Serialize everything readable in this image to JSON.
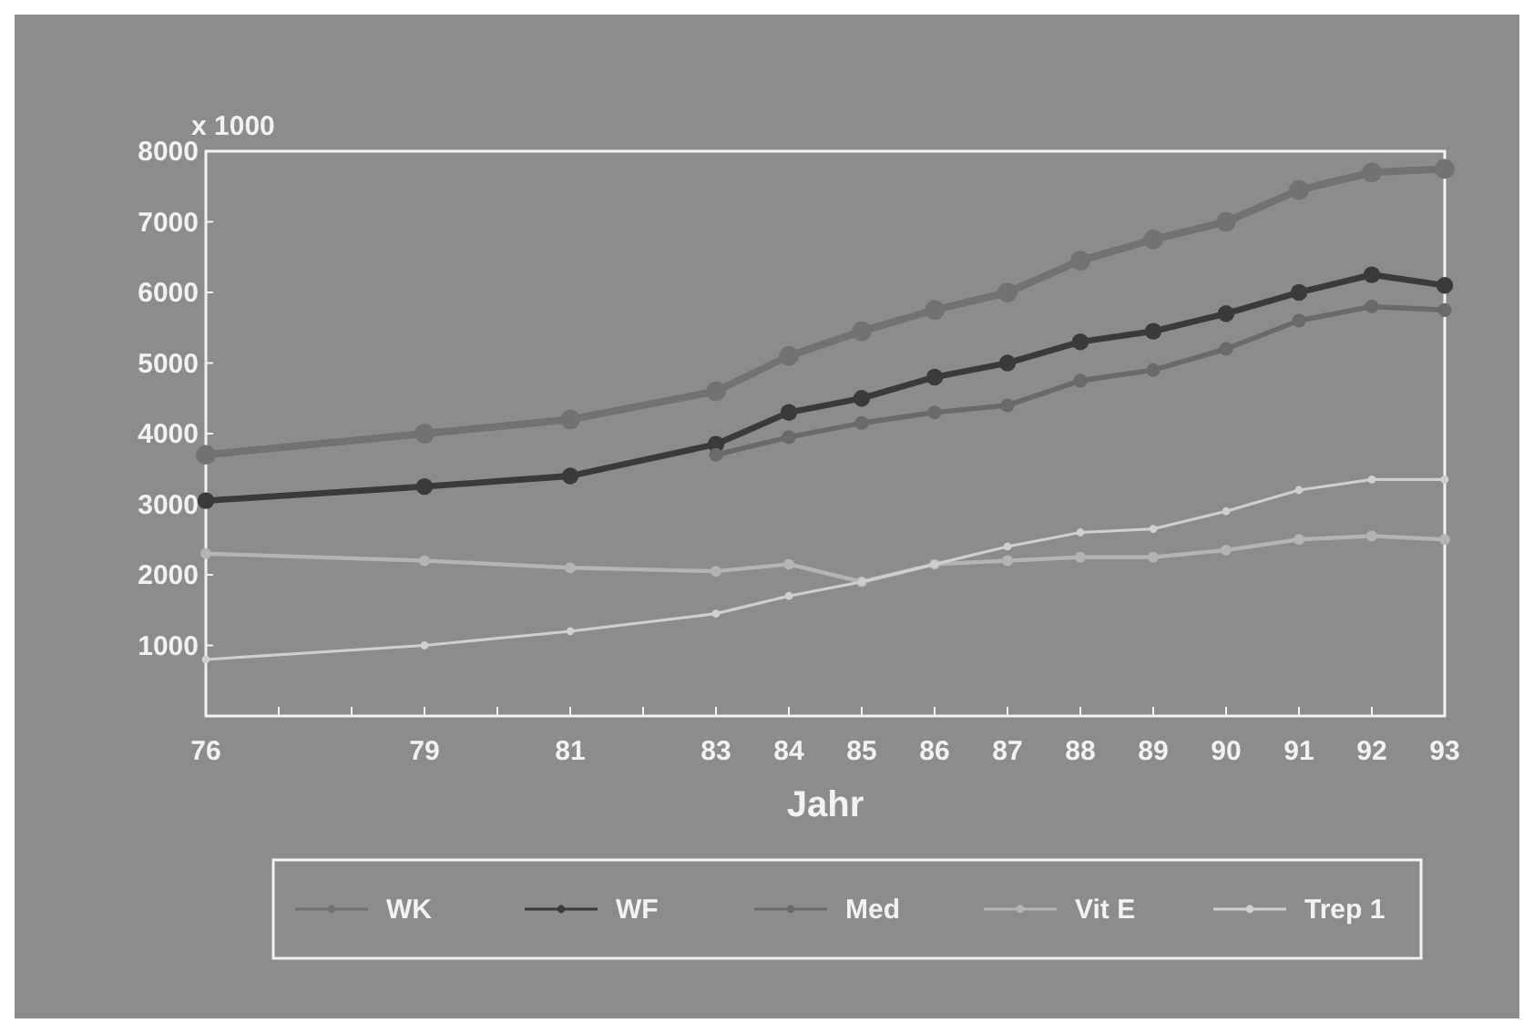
{
  "chart_data": {
    "type": "line",
    "xlabel": "Jahr",
    "ylabel": "x 1000",
    "x": [
      76,
      79,
      81,
      83,
      84,
      85,
      86,
      87,
      88,
      89,
      90,
      91,
      92,
      93
    ],
    "xlim": [
      76,
      93
    ],
    "xticks": [
      76,
      {
        "value": 77,
        "label": null
      },
      {
        "value": 78,
        "label": null
      },
      79,
      {
        "value": 80,
        "label": null
      },
      81,
      {
        "value": 82,
        "label": null
      },
      83,
      84,
      85,
      86,
      87,
      88,
      89,
      90,
      91,
      92,
      93
    ],
    "ylim": [
      0,
      8000
    ],
    "yticks": [
      1000,
      2000,
      3000,
      4000,
      5000,
      6000,
      7000,
      8000
    ],
    "grid": false,
    "legend": "bottom",
    "marker": "circle",
    "line_style": "solid",
    "series": [
      {
        "name": "WK",
        "color": "#727272",
        "values": [
          3700,
          4000,
          4200,
          4600,
          5100,
          5450,
          5750,
          6000,
          6450,
          6750,
          7000,
          7450,
          7700,
          7750
        ]
      },
      {
        "name": "WF",
        "color": "#3a3a3a",
        "values": [
          3050,
          3250,
          3400,
          3850,
          4300,
          4500,
          4800,
          5000,
          5300,
          5450,
          5700,
          6000,
          6250,
          6100
        ]
      },
      {
        "name": "Med",
        "color": "#6a6a6a",
        "values": [
          null,
          null,
          null,
          3700,
          3950,
          4150,
          4300,
          4400,
          4750,
          4900,
          5200,
          5600,
          5800,
          5750
        ]
      },
      {
        "name": "Vit E",
        "color": "#b4b4b4",
        "values": [
          2300,
          2200,
          2100,
          2050,
          2150,
          1900,
          2150,
          2200,
          2250,
          2250,
          2350,
          2500,
          2550,
          2500
        ]
      },
      {
        "name": "Trep 1",
        "color": "#cfcfcf",
        "values": [
          800,
          1000,
          1200,
          1450,
          1700,
          1900,
          2150,
          2400,
          2600,
          2650,
          2900,
          3200,
          3350,
          3350
        ]
      }
    ]
  }
}
